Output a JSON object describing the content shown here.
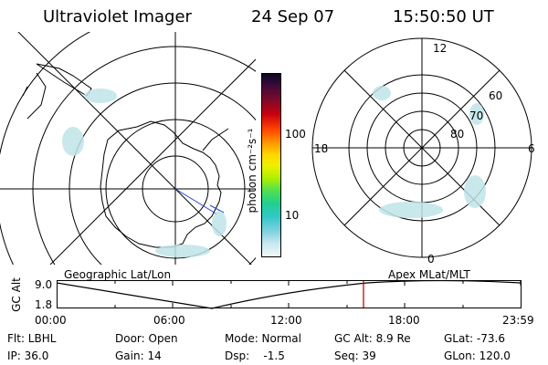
{
  "header": {
    "title": "Ultraviolet Imager",
    "date": "24 Sep 07",
    "time": "15:50:50 UT"
  },
  "colorbar": {
    "unit_label": "photon cm⁻²s⁻¹",
    "tick_100": "100",
    "tick_10": "10"
  },
  "right_plot": {
    "mlt_top": "12",
    "mlt_bottom": "0",
    "mlt_left": "18",
    "mlt_right": "6",
    "lat_60": "60",
    "lat_70": "70",
    "lat_80": "80"
  },
  "timeline": {
    "left_label": "Geographic Lat/Lon",
    "right_label": "Apex MLat/MLT",
    "y_axis_label": "GC Alt",
    "y_max": "9.0",
    "y_min": "1.8",
    "ticks": [
      "00:00",
      "06:00",
      "12:00",
      "18:00",
      "23:59"
    ],
    "current_time_color": "#cc0000"
  },
  "info": {
    "flt": "Flt: LBHL",
    "ip": "IP: 36.0",
    "door": "Door: Open",
    "gain": "Gain: 14",
    "mode": "Mode: Normal",
    "dsp": "Dsp:    -1.5",
    "gc_alt": "GC Alt: 8.9 Re",
    "seq": "Seq: 39",
    "glat": "GLat: -73.6",
    "glon": "GLon: 120.0"
  }
}
